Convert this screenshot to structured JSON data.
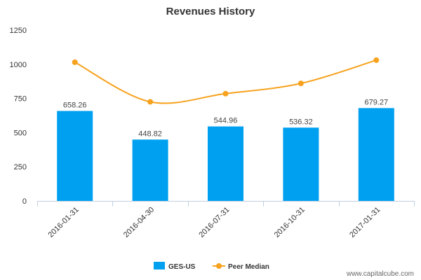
{
  "chart_data": {
    "type": "bar",
    "title": "Revenues History",
    "categories": [
      "2016-01-31",
      "2016-04-30",
      "2016-07-31",
      "2016-10-31",
      "2017-01-31"
    ],
    "series": [
      {
        "name": "GES-US",
        "type": "bar",
        "color": "#00a0f0",
        "values": [
          658.26,
          448.82,
          544.96,
          536.32,
          679.27
        ]
      },
      {
        "name": "Peer Median",
        "type": "line",
        "color": "#f7a21e",
        "values": [
          1015,
          725,
          785,
          860,
          1030
        ]
      }
    ],
    "data_labels": [
      "658.26",
      "448.82",
      "544.96",
      "536.32",
      "679.27"
    ],
    "ylim": [
      0,
      1250
    ],
    "yticks": [
      "0",
      "250",
      "500",
      "750",
      "1000",
      "1250"
    ],
    "ytick_values": [
      0,
      250,
      500,
      750,
      1000,
      1250
    ],
    "xlabel": "",
    "ylabel": "",
    "grid": false,
    "legend": "bottom-center"
  },
  "source_text": "www.capitalcube.com"
}
